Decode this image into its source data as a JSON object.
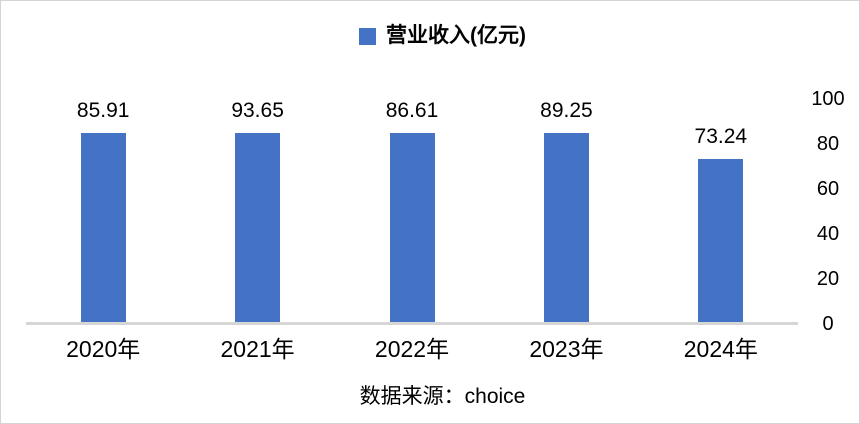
{
  "chart_data": {
    "type": "bar",
    "title": "",
    "xlabel": "",
    "ylabel": "",
    "categories": [
      "2020年",
      "2021年",
      "2022年",
      "2023年",
      "2024年"
    ],
    "values": [
      85.91,
      93.65,
      86.61,
      89.25,
      73.24
    ],
    "data_labels": [
      "85.91",
      "93.65",
      "86.61",
      "89.25",
      "73.24"
    ],
    "ylim": [
      0,
      100
    ],
    "yticks": [
      0,
      20,
      40,
      60,
      80,
      100
    ],
    "ytick_labels": [
      "0",
      "20",
      "40",
      "60",
      "80",
      "100"
    ],
    "y_axis_side": "right",
    "grid": false,
    "legend_position": "top",
    "legend": {
      "label": "营业收入(亿元)",
      "marker_color": "#4472c4"
    },
    "bar_color": "#4472c4",
    "axis_line_color": "#d6d6d6",
    "caption": "数据来源：choice"
  }
}
